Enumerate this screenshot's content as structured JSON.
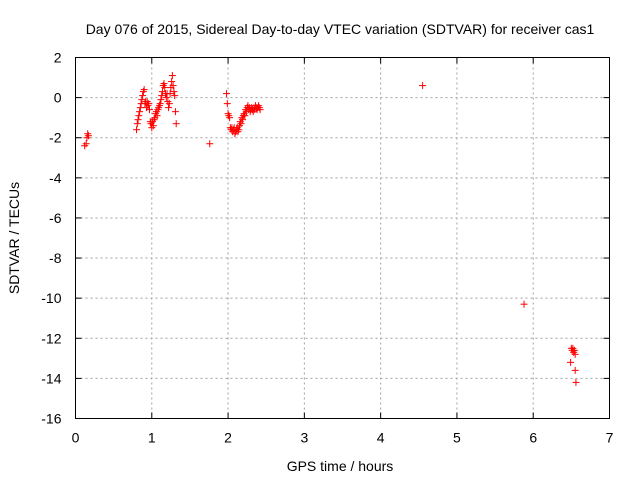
{
  "chart_data": {
    "type": "scatter",
    "title": "Day 076 of 2015, Sidereal Day-to-day VTEC variation (SDTVAR) for receiver cas1",
    "xlabel": "GPS time / hours",
    "ylabel": "SDTVAR / TECUs",
    "xlim": [
      0,
      7
    ],
    "ylim": [
      -16,
      2
    ],
    "xticks": [
      0,
      1,
      2,
      3,
      4,
      5,
      6,
      7
    ],
    "yticks": [
      2,
      0,
      -2,
      -4,
      -6,
      -8,
      -10,
      -12,
      -14,
      -16
    ],
    "grid": true,
    "marker": "+",
    "color": "#ff0000",
    "series": [
      {
        "name": "cas1",
        "points": [
          [
            0.12,
            -2.4
          ],
          [
            0.14,
            -2.3
          ],
          [
            0.15,
            -2.0
          ],
          [
            0.16,
            -1.8
          ],
          [
            0.17,
            -1.9
          ],
          [
            0.8,
            -1.6
          ],
          [
            0.81,
            -1.3
          ],
          [
            0.82,
            -1.1
          ],
          [
            0.83,
            -0.9
          ],
          [
            0.84,
            -0.7
          ],
          [
            0.85,
            -0.5
          ],
          [
            0.86,
            -0.3
          ],
          [
            0.87,
            -0.1
          ],
          [
            0.88,
            0.1
          ],
          [
            0.89,
            0.3
          ],
          [
            0.9,
            0.4
          ],
          [
            0.91,
            -0.3
          ],
          [
            0.92,
            -0.2
          ],
          [
            0.93,
            -0.5
          ],
          [
            0.94,
            -0.2
          ],
          [
            0.95,
            -0.4
          ],
          [
            0.96,
            -0.3
          ],
          [
            0.97,
            -0.6
          ],
          [
            0.98,
            -1.2
          ],
          [
            0.99,
            -1.3
          ],
          [
            1.0,
            -1.5
          ],
          [
            1.01,
            -1.2
          ],
          [
            1.02,
            -1.4
          ],
          [
            1.03,
            -1.1
          ],
          [
            1.04,
            -1.0
          ],
          [
            1.05,
            -0.8
          ],
          [
            1.06,
            -0.7
          ],
          [
            1.07,
            -0.9
          ],
          [
            1.08,
            -0.6
          ],
          [
            1.09,
            -0.5
          ],
          [
            1.1,
            -0.4
          ],
          [
            1.11,
            -0.3
          ],
          [
            1.12,
            -0.1
          ],
          [
            1.13,
            0.1
          ],
          [
            1.14,
            0.3
          ],
          [
            1.15,
            0.6
          ],
          [
            1.16,
            0.7
          ],
          [
            1.17,
            0.5
          ],
          [
            1.18,
            0.2
          ],
          [
            1.19,
            0.0
          ],
          [
            1.2,
            0.2
          ],
          [
            1.21,
            -0.2
          ],
          [
            1.22,
            -0.5
          ],
          [
            1.23,
            -0.3
          ],
          [
            1.24,
            0.2
          ],
          [
            1.25,
            0.5
          ],
          [
            1.26,
            0.8
          ],
          [
            1.27,
            1.1
          ],
          [
            1.28,
            0.6
          ],
          [
            1.29,
            0.3
          ],
          [
            1.3,
            0.1
          ],
          [
            1.31,
            -0.7
          ],
          [
            1.32,
            -1.3
          ],
          [
            1.76,
            -2.3
          ],
          [
            1.98,
            0.2
          ],
          [
            1.99,
            -0.3
          ],
          [
            2.0,
            -0.8
          ],
          [
            2.01,
            -0.9
          ],
          [
            2.02,
            -1.0
          ],
          [
            2.03,
            -1.5
          ],
          [
            2.04,
            -1.6
          ],
          [
            2.05,
            -1.5
          ],
          [
            2.06,
            -1.7
          ],
          [
            2.07,
            -1.6
          ],
          [
            2.08,
            -1.5
          ],
          [
            2.09,
            -1.8
          ],
          [
            2.1,
            -1.7
          ],
          [
            2.11,
            -1.6
          ],
          [
            2.12,
            -1.5
          ],
          [
            2.13,
            -1.7
          ],
          [
            2.14,
            -1.6
          ],
          [
            2.15,
            -1.4
          ],
          [
            2.16,
            -1.2
          ],
          [
            2.17,
            -1.3
          ],
          [
            2.18,
            -1.0
          ],
          [
            2.19,
            -1.1
          ],
          [
            2.2,
            -0.9
          ],
          [
            2.21,
            -0.8
          ],
          [
            2.22,
            -0.9
          ],
          [
            2.23,
            -0.6
          ],
          [
            2.24,
            -0.7
          ],
          [
            2.25,
            -0.5
          ],
          [
            2.26,
            -0.4
          ],
          [
            2.27,
            -0.6
          ],
          [
            2.28,
            -0.5
          ],
          [
            2.29,
            -0.7
          ],
          [
            2.3,
            -0.6
          ],
          [
            2.31,
            -0.5
          ],
          [
            2.32,
            -0.6
          ],
          [
            2.33,
            -0.7
          ],
          [
            2.34,
            -0.5
          ],
          [
            2.35,
            -0.6
          ],
          [
            2.36,
            -0.4
          ],
          [
            2.37,
            -0.5
          ],
          [
            2.38,
            -0.6
          ],
          [
            2.39,
            -0.5
          ],
          [
            2.4,
            -0.4
          ],
          [
            2.41,
            -0.5
          ],
          [
            2.42,
            -0.6
          ],
          [
            4.55,
            0.6
          ],
          [
            5.88,
            -10.3
          ],
          [
            6.49,
            -13.2
          ],
          [
            6.5,
            -12.5
          ],
          [
            6.51,
            -12.6
          ],
          [
            6.52,
            -12.5
          ],
          [
            6.53,
            -12.7
          ],
          [
            6.54,
            -12.6
          ],
          [
            6.55,
            -12.8
          ],
          [
            6.55,
            -13.6
          ],
          [
            6.56,
            -14.2
          ]
        ]
      }
    ]
  }
}
